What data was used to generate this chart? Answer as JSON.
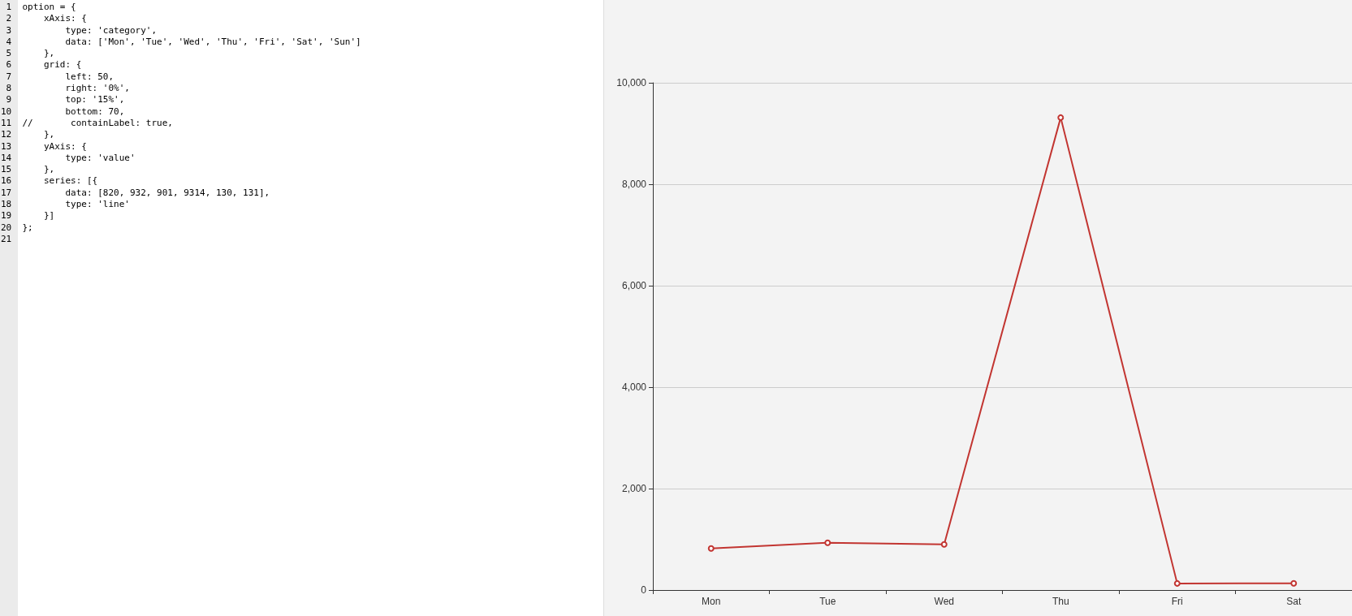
{
  "chart_data": [
    {
      "type": "other",
      "annotations": [
        "1 option = {",
        "2     xAxis: {",
        "3         type: 'category',",
        "4         data: ['Mon', 'Tue', 'Wed', 'Thu', 'Fri', 'Sat', 'Sun']",
        "5     },",
        "6     grid: {",
        "7         left: 50,",
        "8         right: '0%',",
        "9         top: '15%',",
        "10         bottom: 70,",
        "11 //       containLabel: true,",
        "12     },",
        "13     yAxis: {",
        "14         type: 'value'",
        "15     },",
        "16     series: [{",
        "17         data: [820, 932, 901, 9314, 130, 131],",
        "18         type: 'line'",
        "19     }]",
        "20 };",
        "21 "
      ]
    },
    {
      "type": "line",
      "categories": [
        "Mon",
        "Tue",
        "Wed",
        "Thu",
        "Fri",
        "Sat"
      ],
      "series": [
        {
          "color": "#c23531",
          "values": [
            820,
            932,
            901,
            9314,
            130,
            131
          ]
        }
      ],
      "ylim": [
        0,
        10000
      ],
      "yticks": [
        {
          "value": 0,
          "label": "0"
        },
        {
          "value": 2000,
          "label": "2,000"
        },
        {
          "value": 4000,
          "label": "4,000"
        },
        {
          "value": 6000,
          "label": "6,000"
        },
        {
          "value": 8000,
          "label": "8,000"
        },
        {
          "value": 10000,
          "label": "10,000"
        }
      ],
      "grid": "y",
      "marker": "circle",
      "line_style": "solid"
    }
  ]
}
